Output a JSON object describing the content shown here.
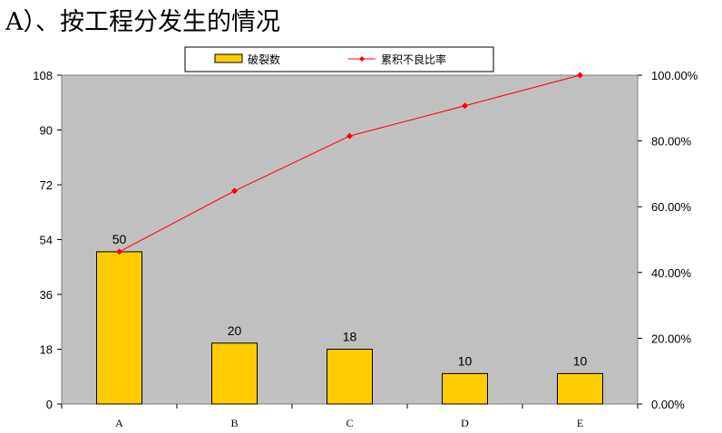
{
  "heading": "A）、按工程分发生的情况",
  "chart_data": {
    "type": "bar",
    "categories": [
      "A",
      "B",
      "C",
      "D",
      "E"
    ],
    "series": [
      {
        "name": "破裂数",
        "type": "bar",
        "axis": "left",
        "values": [
          50,
          20,
          18,
          10,
          10
        ],
        "color": "#ffcc00"
      },
      {
        "name": "累积不良比率",
        "type": "line",
        "axis": "right",
        "values": [
          46.3,
          64.8,
          81.5,
          90.7,
          100.0
        ],
        "color": "#ff0000"
      }
    ],
    "y_left": {
      "min": 0,
      "max": 108,
      "ticks": [
        "0",
        "18",
        "36",
        "54",
        "72",
        "90",
        "108"
      ]
    },
    "y_right": {
      "min": 0,
      "max": 100,
      "ticks": [
        "0.00%",
        "20.00%",
        "40.00%",
        "60.00%",
        "80.00%",
        "100.00%"
      ]
    },
    "data_labels": [
      "50",
      "20",
      "18",
      "10",
      "10"
    ],
    "plot_background": "#c0c0c0",
    "grid": false,
    "legend": "top-center"
  }
}
